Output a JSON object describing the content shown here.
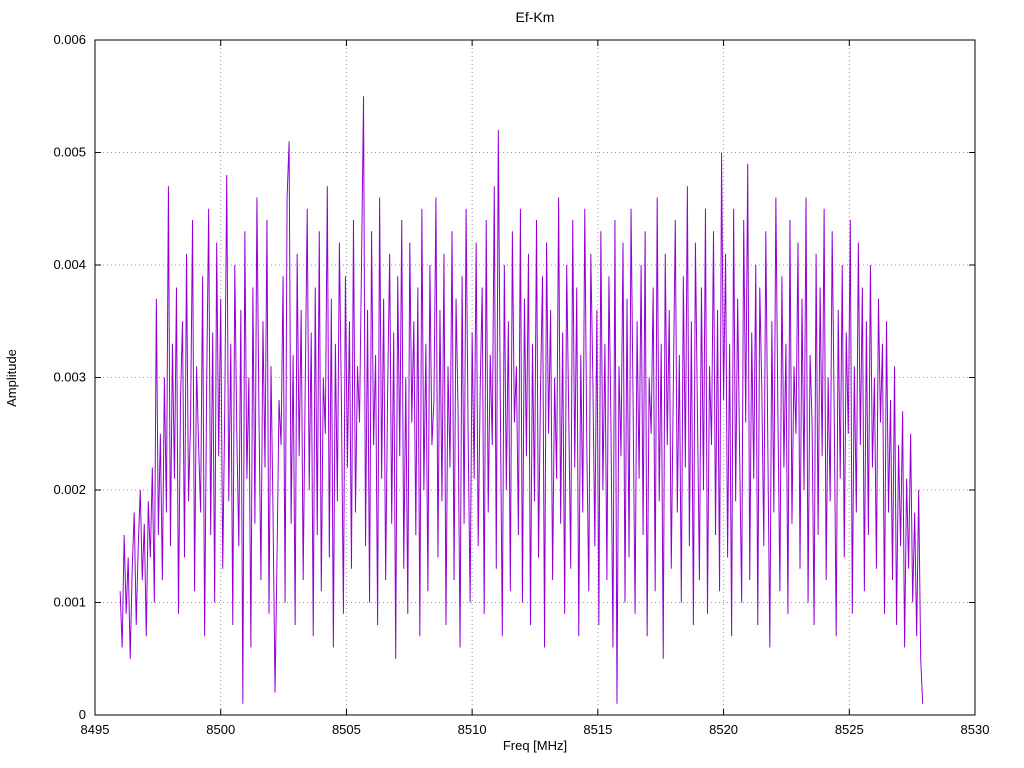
{
  "chart_data": {
    "type": "line",
    "title": "Ef-Km",
    "xlabel": "Freq [MHz]",
    "ylabel": "Amplitude",
    "xlim": [
      8495,
      8530
    ],
    "ylim": [
      0,
      0.006
    ],
    "x_ticks": [
      8495,
      8500,
      8505,
      8510,
      8515,
      8520,
      8525,
      8530
    ],
    "x_tick_labels": [
      "8495",
      "8500",
      "8505",
      "8510",
      "8515",
      "8520",
      "8525",
      "8530"
    ],
    "y_ticks": [
      0,
      0.001,
      0.002,
      0.003,
      0.004,
      0.005,
      0.006
    ],
    "y_tick_labels": [
      "0",
      "0.001",
      "0.002",
      "0.003",
      "0.004",
      "0.005",
      "0.006"
    ],
    "grid": true,
    "legend": "none",
    "line_color": "#9400D3",
    "grid_color": "#999999",
    "border_color": "#000000",
    "series": [
      {
        "name": "Ef-Km",
        "x_start": 8496.0,
        "x_step": 0.08,
        "amplitude_scale": 0.0001,
        "values": [
          11,
          6,
          16,
          9,
          14,
          5,
          13,
          18,
          8,
          15,
          20,
          12,
          17,
          7,
          19,
          14,
          22,
          10,
          37,
          16,
          25,
          12,
          30,
          18,
          47,
          15,
          33,
          21,
          38,
          9,
          28,
          35,
          14,
          41,
          19,
          26,
          44,
          11,
          31,
          24,
          18,
          39,
          7,
          29,
          45,
          16,
          34,
          10,
          42,
          23,
          37,
          13,
          27,
          48,
          19,
          33,
          8,
          40,
          25,
          15,
          36,
          1,
          43,
          21,
          30,
          6,
          38,
          17,
          46,
          27,
          12,
          35,
          22,
          44,
          9,
          31,
          18,
          2,
          14,
          28,
          24,
          39,
          10,
          46,
          51,
          17,
          32,
          8,
          41,
          23,
          36,
          12,
          29,
          45,
          20,
          34,
          7,
          38,
          16,
          43,
          11,
          30,
          25,
          47,
          14,
          37,
          6,
          33,
          19,
          42,
          28,
          9,
          39,
          22,
          35,
          13,
          44,
          18,
          31,
          26,
          40,
          55,
          15,
          36,
          10,
          43,
          24,
          32,
          8,
          46,
          21,
          37,
          12,
          29,
          41,
          17,
          34,
          5,
          39,
          23,
          44,
          13,
          30,
          9,
          42,
          26,
          35,
          16,
          38,
          7,
          45,
          20,
          33,
          11,
          40,
          24,
          28,
          46,
          14,
          36,
          19,
          41,
          8,
          31,
          22,
          43,
          12,
          37,
          27,
          6,
          39,
          17,
          45,
          25,
          10,
          34,
          21,
          42,
          15,
          29,
          38,
          9,
          44,
          18,
          32,
          24,
          47,
          13,
          52,
          28,
          7,
          40,
          20,
          35,
          11,
          43,
          26,
          31,
          16,
          45,
          10,
          37,
          23,
          41,
          8,
          33,
          19,
          44,
          14,
          29,
          39,
          6,
          42,
          25,
          36,
          12,
          30,
          21,
          46,
          17,
          34,
          9,
          40,
          27,
          13,
          44,
          22,
          38,
          7,
          32,
          18,
          45,
          24,
          11,
          41,
          30,
          15,
          36,
          8,
          43,
          20,
          33,
          12,
          39,
          26,
          6,
          44,
          1,
          31,
          23,
          42,
          10,
          37,
          14,
          45,
          28,
          9,
          35,
          21,
          40,
          16,
          43,
          7,
          30,
          25,
          38,
          11,
          46,
          19,
          33,
          5,
          41,
          24,
          36,
          13,
          29,
          44,
          18,
          32,
          10,
          39,
          22,
          47,
          15,
          35,
          8,
          42,
          27,
          12,
          38,
          20,
          45,
          9,
          31,
          24,
          43,
          16,
          36,
          11,
          50,
          28,
          41,
          14,
          33,
          7,
          45,
          19,
          37,
          23,
          10,
          44,
          26,
          49,
          12,
          34,
          21,
          40,
          8,
          38,
          29,
          15,
          43,
          24,
          6,
          35,
          18,
          46,
          27,
          11,
          39,
          22,
          33,
          9,
          44,
          17,
          31,
          25,
          42,
          13,
          37,
          20,
          46,
          10,
          32,
          26,
          8,
          41,
          16,
          38,
          23,
          45,
          12,
          30,
          19,
          43,
          27,
          7,
          36,
          21,
          40,
          14,
          34,
          25,
          44,
          9,
          31,
          18,
          42,
          24,
          38,
          11,
          35,
          16,
          40,
          22,
          30,
          13,
          37,
          26,
          33,
          9,
          35,
          18,
          28,
          12,
          31,
          8,
          24,
          15,
          27,
          6,
          21,
          13,
          25,
          10,
          18,
          7,
          20,
          5,
          1
        ]
      }
    ]
  }
}
